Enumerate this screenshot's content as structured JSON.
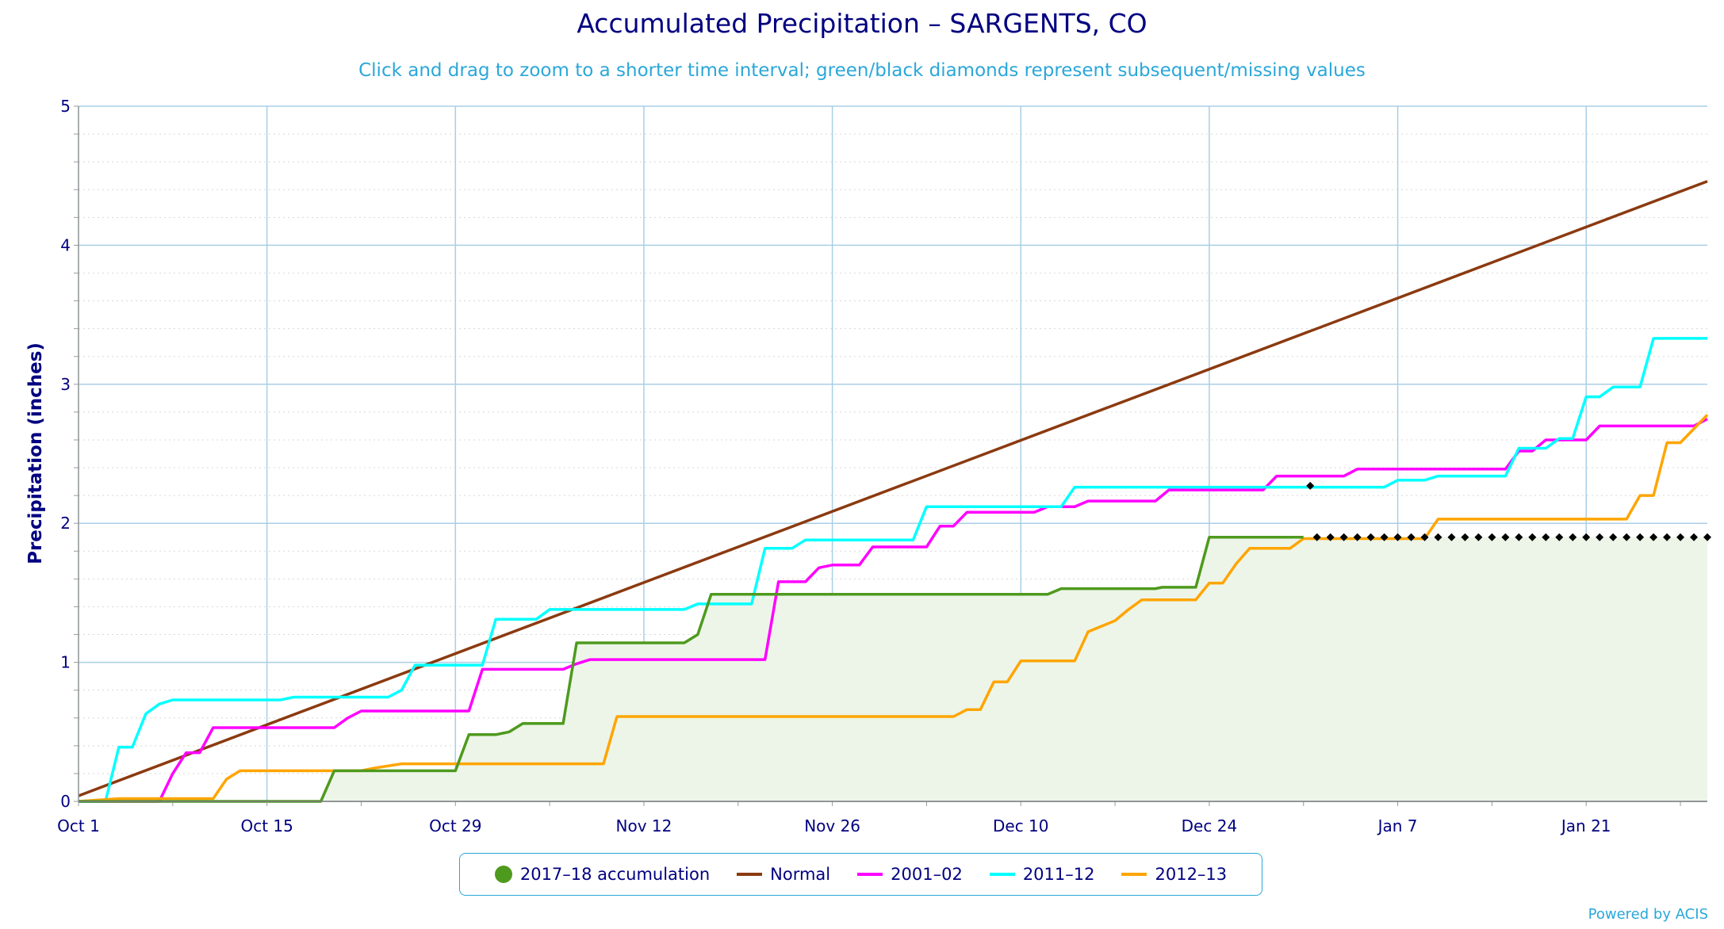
{
  "chart_data": {
    "type": "line",
    "title": "Accumulated Precipitation – SARGENTS, CO",
    "subtitle": "Click and drag to zoom to a shorter time interval; green/black diamonds represent subsequent/missing values",
    "ylabel": "Precipitation (inches)",
    "xlabel": "",
    "x_unit": "days since Oct 1",
    "xlim": [
      0,
      121
    ],
    "ylim": [
      0,
      5
    ],
    "yticks": [
      0,
      1,
      2,
      3,
      4,
      5
    ],
    "xticks": [
      {
        "day": 0,
        "label": "Oct 1"
      },
      {
        "day": 14,
        "label": "Oct 15"
      },
      {
        "day": 28,
        "label": "Oct 29"
      },
      {
        "day": 42,
        "label": "Nov 12"
      },
      {
        "day": 56,
        "label": "Nov 26"
      },
      {
        "day": 70,
        "label": "Dec 10"
      },
      {
        "day": 84,
        "label": "Dec 24"
      },
      {
        "day": 98,
        "label": "Jan 7"
      },
      {
        "day": 112,
        "label": "Jan 21"
      }
    ],
    "grid": true,
    "legend_position": "bottom",
    "series": [
      {
        "name": "2017–18 accumulation",
        "color": "#4e9a1e",
        "style": "area",
        "points": [
          [
            0,
            0
          ],
          [
            18,
            0
          ],
          [
            19,
            0.22
          ],
          [
            28,
            0.22
          ],
          [
            29,
            0.48
          ],
          [
            31,
            0.48
          ],
          [
            32,
            0.5
          ],
          [
            33,
            0.56
          ],
          [
            36,
            0.56
          ],
          [
            37,
            1.14
          ],
          [
            45,
            1.14
          ],
          [
            46,
            1.2
          ],
          [
            47,
            1.49
          ],
          [
            72,
            1.49
          ],
          [
            73,
            1.53
          ],
          [
            80,
            1.53
          ],
          [
            80.5,
            1.54
          ],
          [
            83,
            1.54
          ],
          [
            84,
            1.9
          ],
          [
            91,
            1.9
          ]
        ],
        "missing_markers": {
          "y": 1.9,
          "x_start": 92,
          "x_end": 121,
          "step": 1
        },
        "subsequent_marker": [
          91.5,
          2.27
        ]
      },
      {
        "name": "Normal",
        "color": "#8b3a10",
        "points": [
          [
            0,
            0.04
          ],
          [
            121,
            4.46
          ]
        ]
      },
      {
        "name": "2001–02",
        "color": "#ff00ff",
        "points": [
          [
            0,
            0
          ],
          [
            6,
            0
          ],
          [
            7,
            0.2
          ],
          [
            8,
            0.35
          ],
          [
            9,
            0.35
          ],
          [
            10,
            0.53
          ],
          [
            19,
            0.53
          ],
          [
            20,
            0.6
          ],
          [
            21,
            0.65
          ],
          [
            29,
            0.65
          ],
          [
            30,
            0.95
          ],
          [
            36,
            0.95
          ],
          [
            37,
            0.99
          ],
          [
            38,
            1.02
          ],
          [
            51,
            1.02
          ],
          [
            52,
            1.58
          ],
          [
            54,
            1.58
          ],
          [
            55,
            1.68
          ],
          [
            56,
            1.7
          ],
          [
            58,
            1.7
          ],
          [
            59,
            1.83
          ],
          [
            63,
            1.83
          ],
          [
            64,
            1.98
          ],
          [
            65,
            1.98
          ],
          [
            66,
            2.08
          ],
          [
            71,
            2.08
          ],
          [
            72,
            2.12
          ],
          [
            74,
            2.12
          ],
          [
            75,
            2.16
          ],
          [
            80,
            2.16
          ],
          [
            81,
            2.24
          ],
          [
            88,
            2.24
          ],
          [
            89,
            2.34
          ],
          [
            94,
            2.34
          ],
          [
            95,
            2.39
          ],
          [
            106,
            2.39
          ],
          [
            107,
            2.52
          ],
          [
            108,
            2.52
          ],
          [
            109,
            2.6
          ],
          [
            112,
            2.6
          ],
          [
            113,
            2.7
          ],
          [
            120,
            2.7
          ],
          [
            121,
            2.75
          ]
        ]
      },
      {
        "name": "2011–12",
        "color": "#00ffff",
        "points": [
          [
            0,
            0
          ],
          [
            2,
            0
          ],
          [
            3,
            0.39
          ],
          [
            4,
            0.39
          ],
          [
            5,
            0.63
          ],
          [
            6,
            0.7
          ],
          [
            7,
            0.73
          ],
          [
            15,
            0.73
          ],
          [
            16,
            0.75
          ],
          [
            23,
            0.75
          ],
          [
            24,
            0.8
          ],
          [
            25,
            0.98
          ],
          [
            30,
            0.98
          ],
          [
            31,
            1.31
          ],
          [
            34,
            1.31
          ],
          [
            35,
            1.38
          ],
          [
            45,
            1.38
          ],
          [
            46,
            1.42
          ],
          [
            50,
            1.42
          ],
          [
            51,
            1.82
          ],
          [
            53,
            1.82
          ],
          [
            54,
            1.88
          ],
          [
            62,
            1.88
          ],
          [
            63,
            2.12
          ],
          [
            73,
            2.12
          ],
          [
            74,
            2.26
          ],
          [
            97,
            2.26
          ],
          [
            98,
            2.31
          ],
          [
            100,
            2.31
          ],
          [
            101,
            2.34
          ],
          [
            106,
            2.34
          ],
          [
            107,
            2.54
          ],
          [
            109,
            2.54
          ],
          [
            110,
            2.61
          ],
          [
            111,
            2.61
          ],
          [
            112,
            2.91
          ],
          [
            113,
            2.91
          ],
          [
            114,
            2.98
          ],
          [
            116,
            2.98
          ],
          [
            117,
            3.33
          ],
          [
            121,
            3.33
          ]
        ]
      },
      {
        "name": "2012–13",
        "color": "#ffa500",
        "points": [
          [
            0,
            0
          ],
          [
            3,
            0.02
          ],
          [
            10,
            0.02
          ],
          [
            11,
            0.16
          ],
          [
            12,
            0.22
          ],
          [
            21,
            0.22
          ],
          [
            22,
            0.24
          ],
          [
            24,
            0.27
          ],
          [
            39,
            0.27
          ],
          [
            40,
            0.61
          ],
          [
            65,
            0.61
          ],
          [
            66,
            0.66
          ],
          [
            67,
            0.66
          ],
          [
            68,
            0.86
          ],
          [
            69,
            0.86
          ],
          [
            70,
            1.01
          ],
          [
            74,
            1.01
          ],
          [
            75,
            1.22
          ],
          [
            76,
            1.26
          ],
          [
            77,
            1.3
          ],
          [
            78,
            1.38
          ],
          [
            79,
            1.45
          ],
          [
            83,
            1.45
          ],
          [
            84,
            1.57
          ],
          [
            85,
            1.57
          ],
          [
            86,
            1.71
          ],
          [
            87,
            1.82
          ],
          [
            90,
            1.82
          ],
          [
            91,
            1.89
          ],
          [
            100,
            1.89
          ],
          [
            101,
            2.03
          ],
          [
            115,
            2.03
          ],
          [
            116,
            2.2
          ],
          [
            117,
            2.2
          ],
          [
            118,
            2.58
          ],
          [
            119,
            2.58
          ],
          [
            121,
            2.78
          ]
        ]
      }
    ]
  },
  "legend": {
    "items": [
      "2017–18 accumulation",
      "Normal",
      "2001–02",
      "2011–12",
      "2012–13"
    ]
  },
  "credit": "Powered by ACIS",
  "colors": {
    "title": "#000080",
    "subtitle": "#2aa7d9",
    "grid": "#a9cfe6",
    "area_fill": "#edf5e8",
    "marker": "#000000"
  }
}
